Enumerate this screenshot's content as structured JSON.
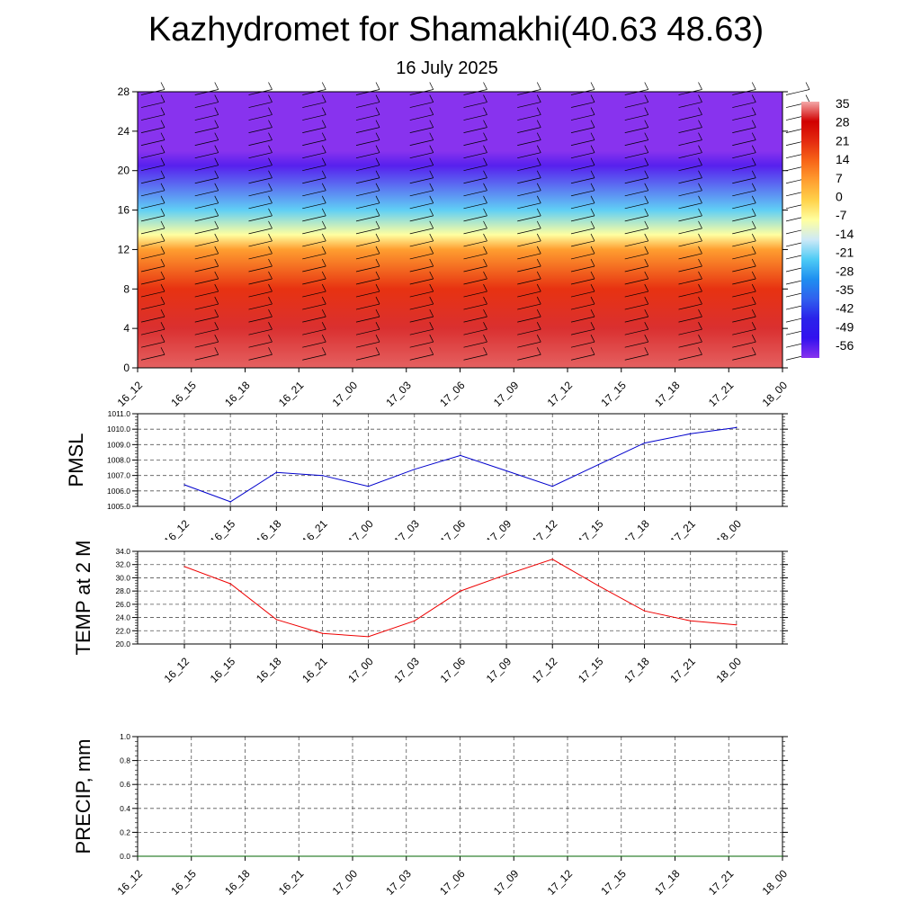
{
  "header": {
    "title": "Kazhydromet for Shamakhi(40.63 48.63)",
    "subtitle": "16 July 2025"
  },
  "colors": {
    "pmsl_line": "#0000cc",
    "temp_line": "#ee0000",
    "precip_line": "#006400",
    "grid": "#555555"
  },
  "chart_data": [
    {
      "type": "heatmap",
      "title": "",
      "x": [
        "16_12",
        "16_15",
        "16_18",
        "16_21",
        "17_00",
        "17_03",
        "17_06",
        "17_09",
        "17_12",
        "17_15",
        "17_18",
        "17_21",
        "18_00"
      ],
      "ylim": [
        0,
        28
      ],
      "yticks": [
        "0",
        "4",
        "8",
        "12",
        "16",
        "20",
        "24",
        "28"
      ],
      "colorbar": {
        "labels": [
          "35",
          "28",
          "21",
          "14",
          "7",
          "0",
          "-7",
          "-14",
          "-21",
          "-28",
          "-35",
          "-42",
          "-49",
          "-56"
        ],
        "stops": [
          "#f4a9a9",
          "#d00000",
          "#e42a10",
          "#f76518",
          "#ff9e30",
          "#ffd24a",
          "#ffffa0",
          "#cde9f7",
          "#4ecbf5",
          "#1f8ff0",
          "#3060ee",
          "#2a22ea",
          "#3311ee",
          "#8833ee"
        ]
      },
      "profile": [
        {
          "height": 0,
          "value": 32
        },
        {
          "height": 4,
          "value": 30
        },
        {
          "height": 8,
          "value": 20
        },
        {
          "height": 12,
          "value": 7
        },
        {
          "height": 13.5,
          "value": -7
        },
        {
          "height": 16,
          "value": -20
        },
        {
          "height": 20.5,
          "value": -52
        },
        {
          "height": 22,
          "value": -60
        },
        {
          "height": 28,
          "value": -58
        }
      ],
      "wind_barbs": "shown at each time step and level"
    },
    {
      "type": "line",
      "ylabel": "PMSL",
      "x": [
        "16_12",
        "16_15",
        "16_18",
        "16_21",
        "17_00",
        "17_03",
        "17_06",
        "17_09",
        "17_12",
        "17_15",
        "17_18",
        "17_21",
        "18_00"
      ],
      "ylim": [
        1005.0,
        1011.0
      ],
      "yticks": [
        "1005.0",
        "1006.0",
        "1007.0",
        "1008.0",
        "1009.0",
        "1010.0",
        "1011.0"
      ],
      "values": [
        1006.4,
        1005.3,
        1007.2,
        1007.0,
        1006.3,
        1007.4,
        1008.3,
        1007.3,
        1006.3,
        1007.7,
        1009.1,
        1009.7,
        1010.1
      ],
      "grid": true
    },
    {
      "type": "line",
      "ylabel": "TEMP at 2 M",
      "x": [
        "16_12",
        "16_15",
        "16_18",
        "16_21",
        "17_00",
        "17_03",
        "17_06",
        "17_09",
        "17_12",
        "17_15",
        "17_18",
        "17_21",
        "18_00"
      ],
      "ylim": [
        20.0,
        34.0
      ],
      "yticks": [
        "20.0",
        "22.0",
        "24.0",
        "26.0",
        "28.0",
        "30.0",
        "32.0",
        "34.0"
      ],
      "values": [
        31.7,
        29.1,
        23.7,
        21.6,
        21.1,
        23.5,
        28.0,
        30.5,
        32.8,
        28.8,
        25.0,
        23.5,
        22.9
      ],
      "grid": true
    },
    {
      "type": "line",
      "ylabel": "PRECIP, mm",
      "x": [
        "16_12",
        "16_15",
        "16_18",
        "16_21",
        "17_00",
        "17_03",
        "17_06",
        "17_09",
        "17_12",
        "17_15",
        "17_18",
        "17_21",
        "18_00"
      ],
      "ylim": [
        0.0,
        1.0
      ],
      "yticks": [
        "0.0",
        "0.2",
        "0.4",
        "0.6",
        "0.8",
        "1.0"
      ],
      "values": [
        0,
        0,
        0,
        0,
        0,
        0,
        0,
        0,
        0,
        0,
        0,
        0,
        0
      ],
      "grid": true
    }
  ]
}
